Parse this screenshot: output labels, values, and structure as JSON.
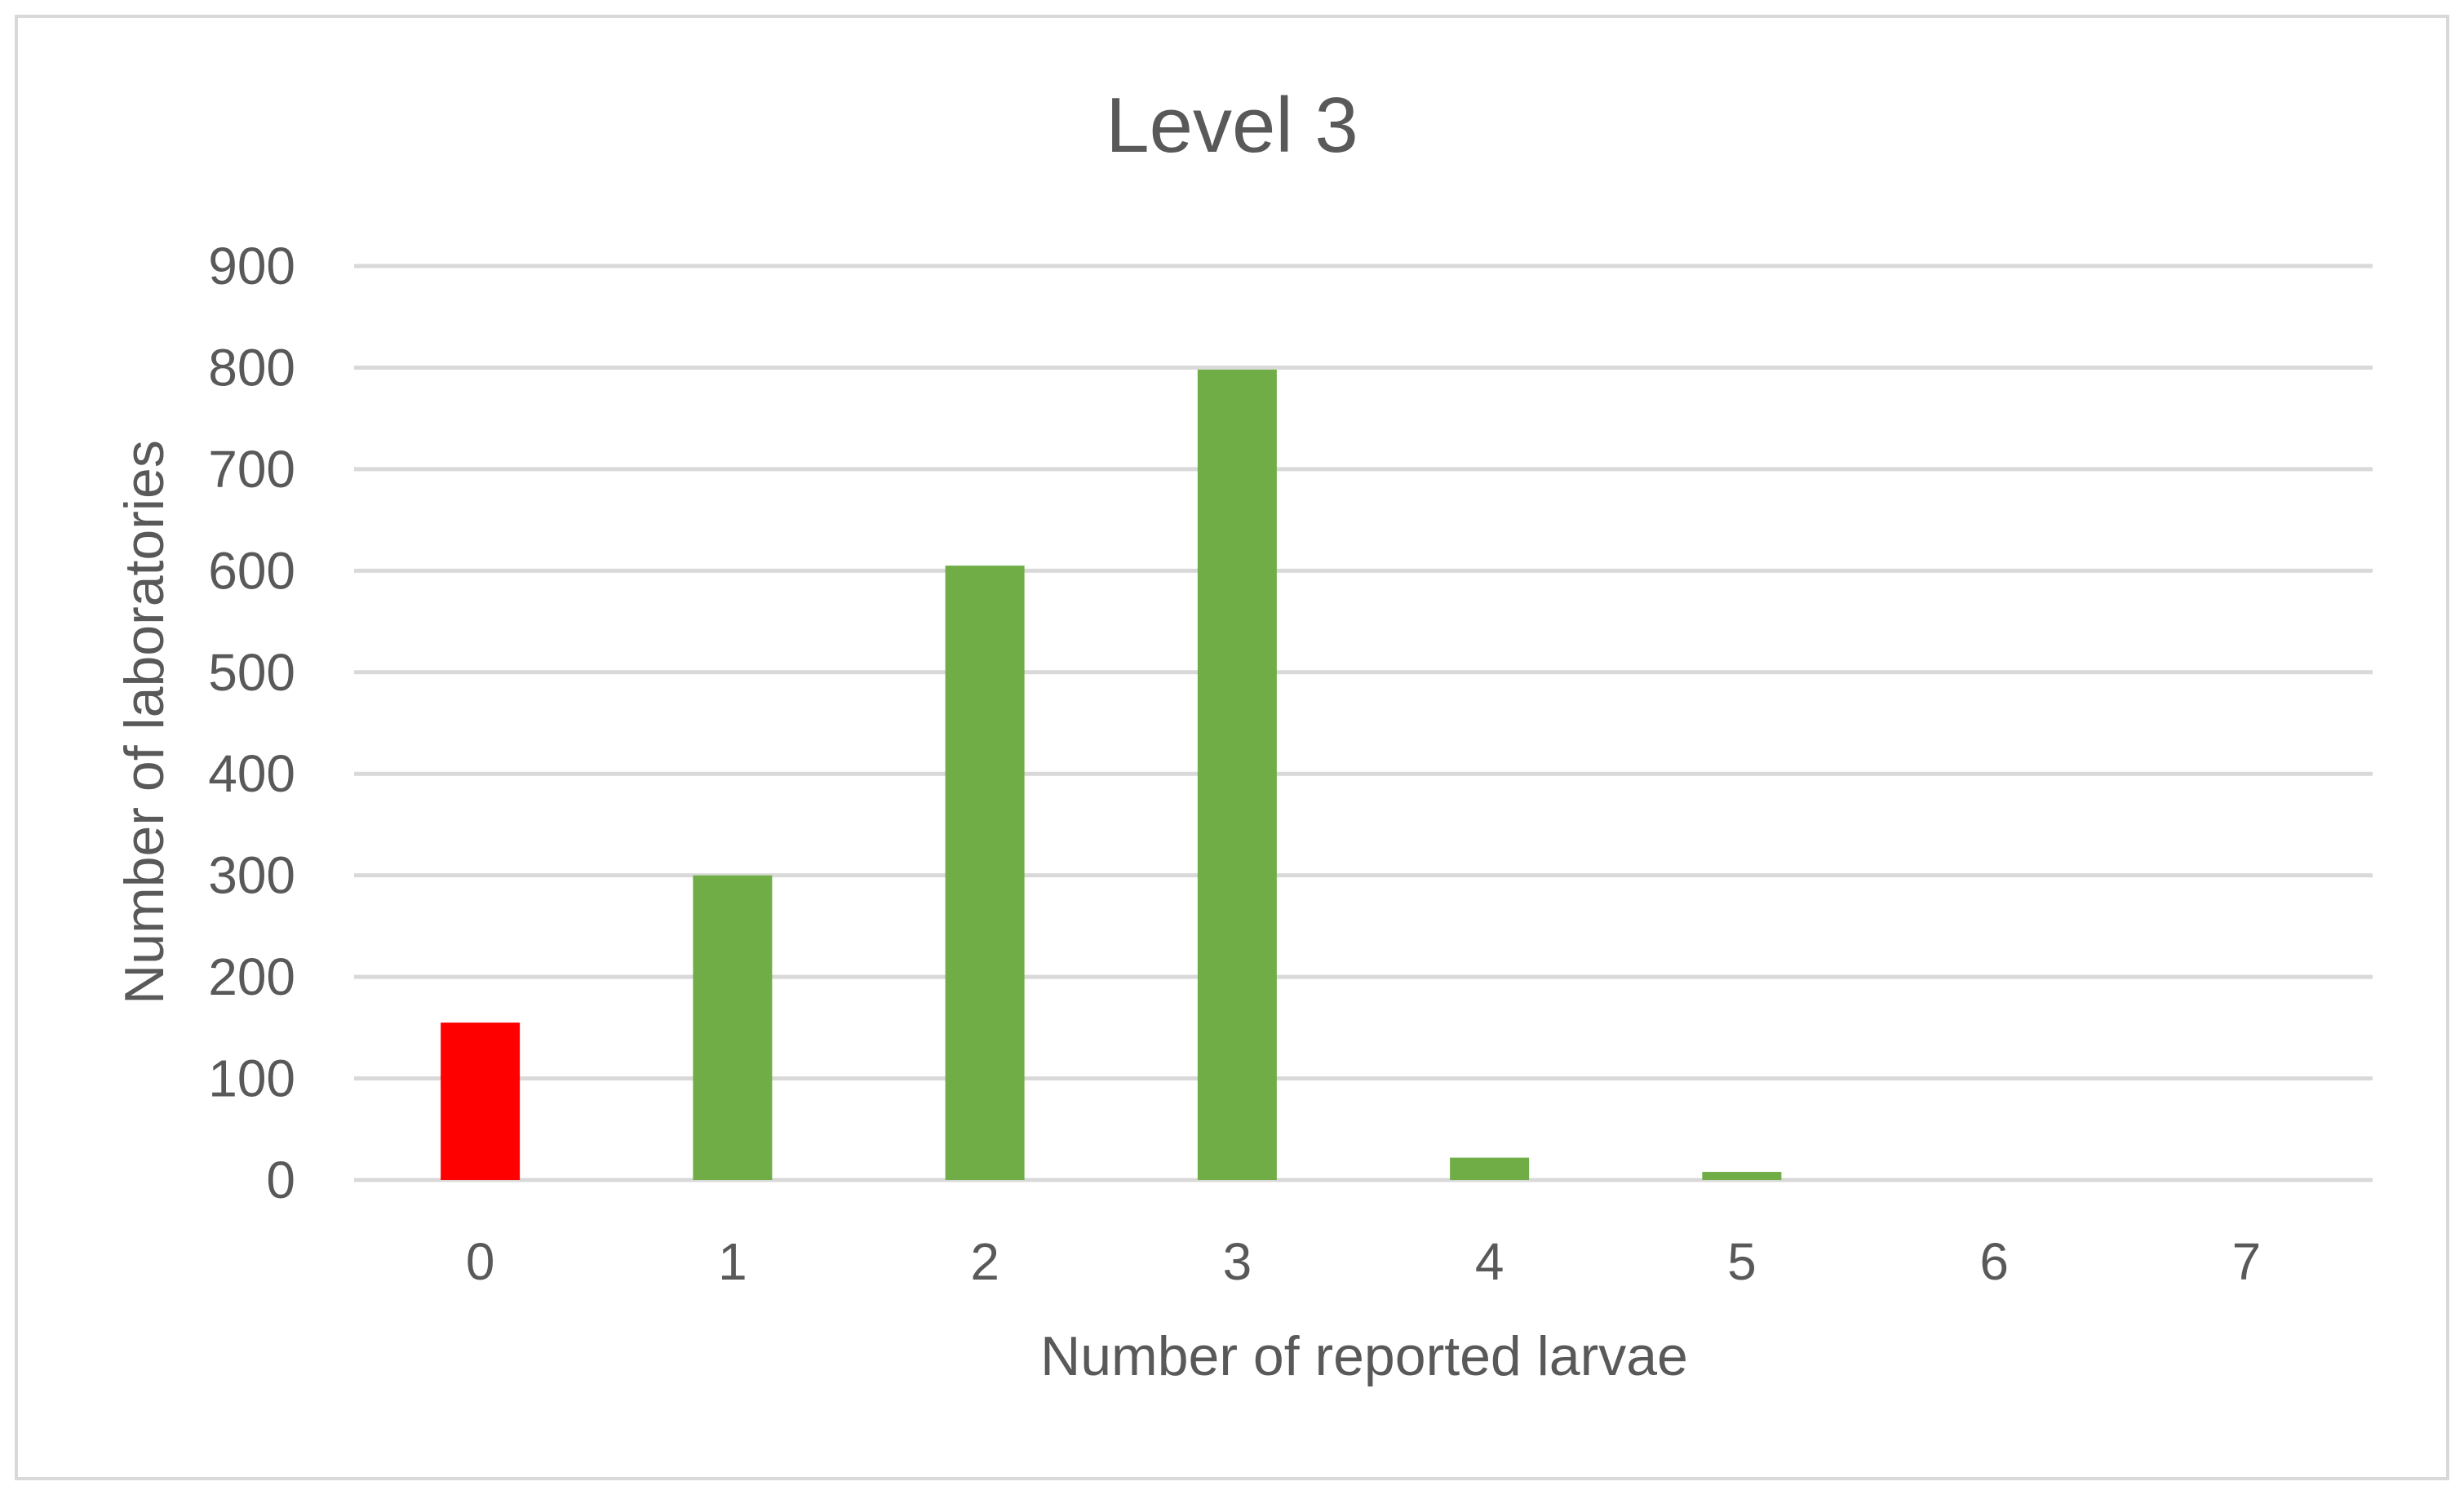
{
  "chart_data": {
    "type": "bar",
    "title": "Level 3",
    "xlabel": "Number of reported larvae",
    "ylabel": "Number of laboratories",
    "categories": [
      "0",
      "1",
      "2",
      "3",
      "4",
      "5",
      "6",
      "7"
    ],
    "values": [
      155,
      300,
      605,
      798,
      22,
      8,
      0,
      0
    ],
    "bar_colors": [
      "#ff0000",
      "#70ad47",
      "#70ad47",
      "#70ad47",
      "#70ad47",
      "#70ad47",
      "#70ad47",
      "#70ad47"
    ],
    "ylim": [
      0,
      900
    ],
    "yticks": [
      "0",
      "100",
      "200",
      "300",
      "400",
      "500",
      "600",
      "700",
      "800",
      "900"
    ],
    "ytick_values": [
      0,
      100,
      200,
      300,
      400,
      500,
      600,
      700,
      800,
      900
    ],
    "grid": true,
    "legend": "none"
  }
}
